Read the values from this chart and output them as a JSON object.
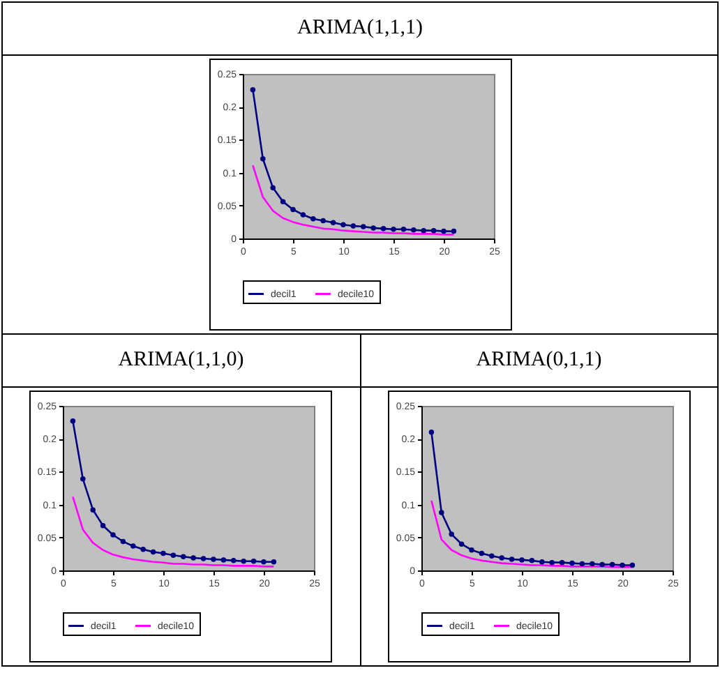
{
  "chart_data": [
    {
      "type": "line",
      "title": "ARIMA(1,1,1)",
      "x": [
        1,
        2,
        3,
        4,
        5,
        6,
        7,
        8,
        9,
        10,
        11,
        12,
        13,
        14,
        15,
        16,
        17,
        18,
        19,
        20,
        21
      ],
      "xlim": [
        0,
        25
      ],
      "xticks": [
        0,
        5,
        10,
        15,
        20,
        25
      ],
      "ylim": [
        0,
        0.25
      ],
      "yticks": [
        0,
        0.05,
        0.1,
        0.15,
        0.2,
        0.25
      ],
      "grid": false,
      "legend": "bottom",
      "marker": "circle",
      "series": [
        {
          "name": "decil1",
          "color": "#000080",
          "values": [
            0.226,
            0.121,
            0.077,
            0.056,
            0.044,
            0.036,
            0.03,
            0.027,
            0.024,
            0.021,
            0.019,
            0.018,
            0.016,
            0.015,
            0.014,
            0.014,
            0.013,
            0.012,
            0.012,
            0.011,
            0.011
          ]
        },
        {
          "name": "decile10",
          "color": "#ff00ff",
          "marker": "none",
          "values": [
            0.111,
            0.063,
            0.042,
            0.031,
            0.025,
            0.021,
            0.018,
            0.015,
            0.014,
            0.012,
            0.011,
            0.01,
            0.009,
            0.009,
            0.008,
            0.008,
            0.007,
            0.007,
            0.007,
            0.006,
            0.006
          ]
        }
      ]
    },
    {
      "type": "line",
      "title": "ARIMA(1,1,0)",
      "x": [
        1,
        2,
        3,
        4,
        5,
        6,
        7,
        8,
        9,
        10,
        11,
        12,
        13,
        14,
        15,
        16,
        17,
        18,
        19,
        20,
        21
      ],
      "xlim": [
        0,
        25
      ],
      "xticks": [
        0,
        5,
        10,
        15,
        20,
        25
      ],
      "ylim": [
        0,
        0.25
      ],
      "yticks": [
        0,
        0.05,
        0.1,
        0.15,
        0.2,
        0.25
      ],
      "grid": false,
      "legend": "bottom",
      "marker": "circle",
      "series": [
        {
          "name": "decil1",
          "color": "#000080",
          "values": [
            0.227,
            0.139,
            0.092,
            0.068,
            0.054,
            0.044,
            0.037,
            0.032,
            0.028,
            0.026,
            0.023,
            0.021,
            0.019,
            0.018,
            0.017,
            0.016,
            0.015,
            0.014,
            0.014,
            0.013,
            0.013
          ]
        },
        {
          "name": "decile10",
          "color": "#ff00ff",
          "marker": "none",
          "values": [
            0.112,
            0.062,
            0.042,
            0.031,
            0.024,
            0.02,
            0.017,
            0.015,
            0.013,
            0.012,
            0.01,
            0.01,
            0.009,
            0.009,
            0.008,
            0.008,
            0.007,
            0.007,
            0.007,
            0.006,
            0.006
          ]
        }
      ]
    },
    {
      "type": "line",
      "title": "ARIMA(0,1,1)",
      "x": [
        1,
        2,
        3,
        4,
        5,
        6,
        7,
        8,
        9,
        10,
        11,
        12,
        13,
        14,
        15,
        16,
        17,
        18,
        19,
        20,
        21
      ],
      "xlim": [
        0,
        25
      ],
      "xticks": [
        0,
        5,
        10,
        15,
        20,
        25
      ],
      "ylim": [
        0,
        0.25
      ],
      "yticks": [
        0,
        0.05,
        0.1,
        0.15,
        0.2,
        0.25
      ],
      "grid": false,
      "legend": "bottom",
      "marker": "circle",
      "series": [
        {
          "name": "decil1",
          "color": "#000080",
          "values": [
            0.21,
            0.088,
            0.055,
            0.04,
            0.031,
            0.026,
            0.022,
            0.019,
            0.017,
            0.016,
            0.015,
            0.013,
            0.012,
            0.012,
            0.011,
            0.01,
            0.01,
            0.009,
            0.009,
            0.008,
            0.008
          ]
        },
        {
          "name": "decile10",
          "color": "#ff00ff",
          "marker": "none",
          "values": [
            0.106,
            0.047,
            0.031,
            0.023,
            0.018,
            0.015,
            0.013,
            0.011,
            0.01,
            0.009,
            0.008,
            0.008,
            0.007,
            0.007,
            0.006,
            0.006,
            0.006,
            0.006,
            0.005,
            0.005,
            0.005
          ]
        }
      ]
    }
  ]
}
